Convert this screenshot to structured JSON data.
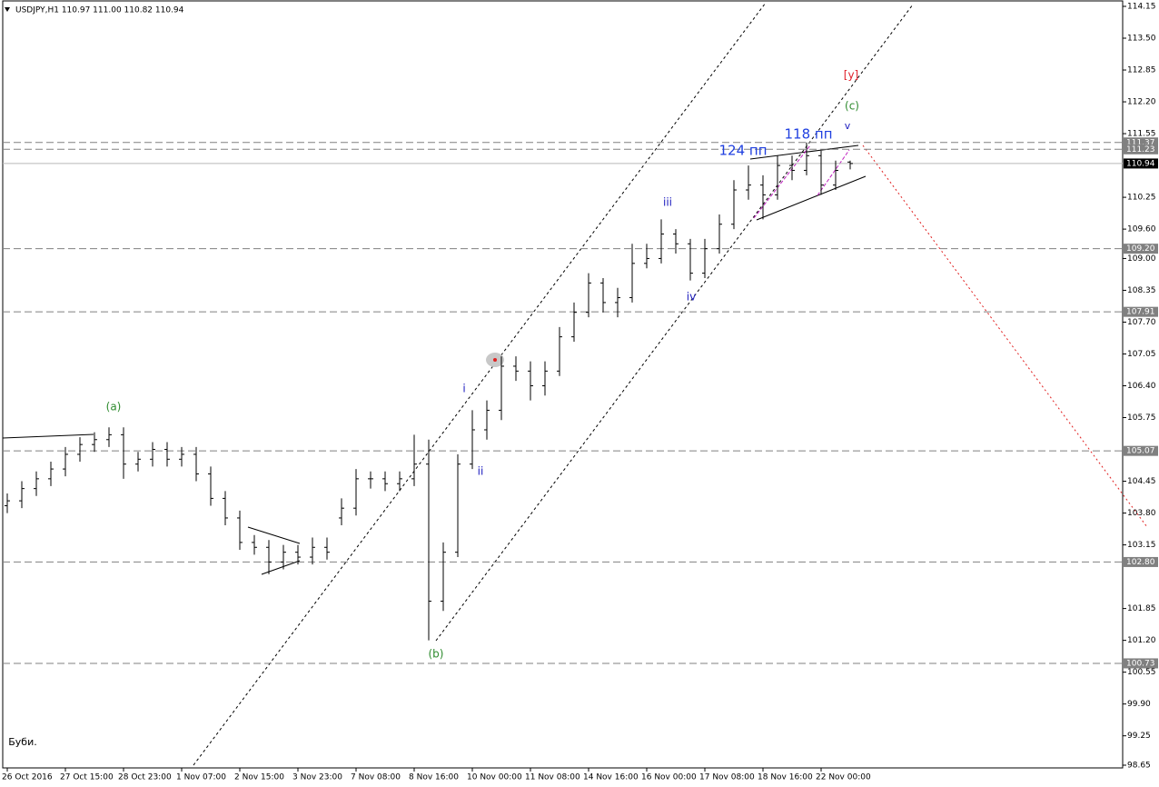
{
  "chart_data": {
    "type": "ohlc",
    "title": "USDJPY,H1  110.97 111.00 110.82 110.94",
    "categories": [
      "26 Oct 2016",
      null,
      null,
      null,
      "27 Oct 15:00",
      null,
      null,
      null,
      "28 Oct 23:00",
      null,
      null,
      null,
      "1 Nov 07:00",
      null,
      null,
      null,
      "2 Nov 15:00",
      null,
      null,
      null,
      "3 Nov 23:00",
      null,
      null,
      null,
      "7 Nov 08:00",
      null,
      null,
      null,
      "8 Nov 16:00",
      null,
      null,
      null,
      "10 Nov 00:00",
      null,
      null,
      null,
      "11 Nov 08:00",
      null,
      null,
      null,
      "14 Nov 16:00",
      null,
      null,
      null,
      "16 Nov 00:00",
      null,
      null,
      null,
      "17 Nov 08:00",
      null,
      null,
      null,
      "18 Nov 16:00",
      null,
      null,
      null,
      "22 Nov 00:00",
      null,
      null
    ],
    "open": [
      103.95,
      104.05,
      104.3,
      104.5,
      104.7,
      105.0,
      105.2,
      105.3,
      105.4,
      104.8,
      104.9,
      105.1,
      104.9,
      105.0,
      104.6,
      104.1,
      103.7,
      103.2,
      103.1,
      102.8,
      103.0,
      102.9,
      103.1,
      103.7,
      103.9,
      104.5,
      104.5,
      104.4,
      104.5,
      104.8,
      102.0,
      103.0,
      104.8,
      105.5,
      105.9,
      106.8,
      106.7,
      106.4,
      106.7,
      107.4,
      107.9,
      108.5,
      108.1,
      108.2,
      108.9,
      109.0,
      109.5,
      109.3,
      108.7,
      109.2,
      109.7,
      110.4,
      110.5,
      110.3,
      110.9,
      110.8,
      111.1,
      110.5,
      110.97
    ],
    "high": [
      104.2,
      104.45,
      104.65,
      104.85,
      105.15,
      105.35,
      105.45,
      105.55,
      105.55,
      105.05,
      105.25,
      105.25,
      105.15,
      105.15,
      104.75,
      104.25,
      103.85,
      103.35,
      103.25,
      103.15,
      103.15,
      103.3,
      103.3,
      104.1,
      104.7,
      104.65,
      104.65,
      104.65,
      105.4,
      105.3,
      103.2,
      105.0,
      105.9,
      106.1,
      107.0,
      107.0,
      106.9,
      106.9,
      107.6,
      108.1,
      108.7,
      108.6,
      108.4,
      109.3,
      109.3,
      109.8,
      109.6,
      109.4,
      109.4,
      109.9,
      110.6,
      110.9,
      110.7,
      111.1,
      111.1,
      111.37,
      111.2,
      111.0,
      111.0
    ],
    "low": [
      103.8,
      103.9,
      104.15,
      104.35,
      104.55,
      104.85,
      105.05,
      105.15,
      104.5,
      104.65,
      104.75,
      104.75,
      104.75,
      104.45,
      103.95,
      103.55,
      103.05,
      102.95,
      102.55,
      102.65,
      102.75,
      102.75,
      102.85,
      103.55,
      103.75,
      104.3,
      104.25,
      104.25,
      104.35,
      101.2,
      101.8,
      102.9,
      104.7,
      105.3,
      105.7,
      106.5,
      106.1,
      106.2,
      106.6,
      107.3,
      107.8,
      107.9,
      107.8,
      108.1,
      108.8,
      108.9,
      109.1,
      108.55,
      108.6,
      109.1,
      109.6,
      110.2,
      109.8,
      110.2,
      110.6,
      110.7,
      110.3,
      110.4,
      110.82
    ],
    "close": [
      104.05,
      104.3,
      104.5,
      104.7,
      105.0,
      105.2,
      105.3,
      105.4,
      104.8,
      104.9,
      105.1,
      104.9,
      105.0,
      104.6,
      104.1,
      103.7,
      103.2,
      103.1,
      102.8,
      103.0,
      102.9,
      103.1,
      103.0,
      103.9,
      104.5,
      104.5,
      104.4,
      104.5,
      104.8,
      102.0,
      103.0,
      104.8,
      105.5,
      105.9,
      106.8,
      106.7,
      106.4,
      106.7,
      107.4,
      107.9,
      108.5,
      108.1,
      108.2,
      108.9,
      109.0,
      109.5,
      109.3,
      108.7,
      109.2,
      109.7,
      110.4,
      110.5,
      110.3,
      110.9,
      110.8,
      111.1,
      110.5,
      110.8,
      110.94
    ],
    "color": "#000000",
    "ylim": [
      98.65,
      114.15
    ],
    "yticks": [
      114.15,
      {
        "value": 113.5,
        "label": "113.50"
      },
      112.85,
      {
        "value": 112.2,
        "label": "112.20"
      },
      111.55,
      110.25,
      {
        "value": 109.6,
        "label": "109.60"
      },
      {
        "value": 109,
        "label": "109.00"
      },
      108.35,
      {
        "value": 107.7,
        "label": "107.70"
      },
      107.05,
      {
        "value": 106.4,
        "label": "106.40"
      },
      105.75,
      104.45,
      {
        "value": 103.8,
        "label": "103.80"
      },
      103.15,
      101.85,
      {
        "value": 101.2,
        "label": "101.20"
      },
      100.55,
      {
        "value": 99.9,
        "label": "99.90"
      },
      99.25,
      98.65
    ],
    "levels": [
      111.37,
      111.23,
      {
        "value": 109.2,
        "label": "109.20"
      },
      107.91,
      105.07,
      {
        "value": 102.8,
        "label": "102.80"
      },
      100.73
    ],
    "current": 110.94,
    "annotations": [
      {
        "text": "(a)",
        "color": "#2e8b2e"
      },
      {
        "text": "(b)",
        "color": "#2e8b2e"
      },
      {
        "text": "(c)",
        "color": "#2e8b2e"
      },
      {
        "text": "[y]",
        "color": "#e0202a"
      },
      {
        "text": "i",
        "color": "#2020c0"
      },
      {
        "text": "ii",
        "color": "#2020c0"
      },
      {
        "text": "iii",
        "color": "#2020c0"
      },
      {
        "text": "iv",
        "color": "#2020c0"
      },
      {
        "text": "v",
        "color": "#2020c0"
      },
      {
        "text": "124 пп",
        "color": "#2040e0"
      },
      {
        "text": "118 пп",
        "color": "#2040e0"
      },
      {
        "text": "Буби.",
        "color": "#000000"
      }
    ]
  }
}
